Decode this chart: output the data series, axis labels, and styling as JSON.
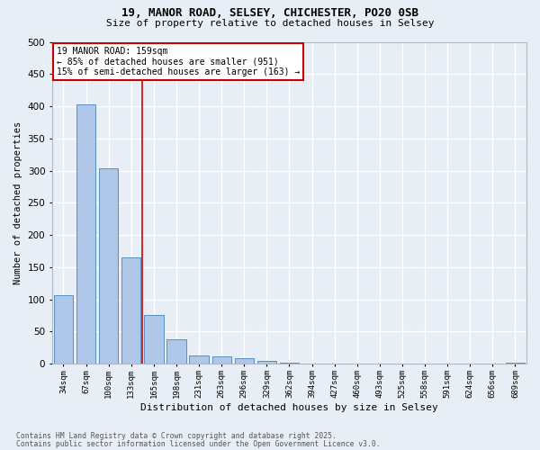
{
  "title1": "19, MANOR ROAD, SELSEY, CHICHESTER, PO20 0SB",
  "title2": "Size of property relative to detached houses in Selsey",
  "xlabel": "Distribution of detached houses by size in Selsey",
  "ylabel": "Number of detached properties",
  "bar_color": "#aec6e8",
  "bar_edge_color": "#5a8fc0",
  "categories": [
    "34sqm",
    "67sqm",
    "100sqm",
    "133sqm",
    "165sqm",
    "198sqm",
    "231sqm",
    "263sqm",
    "296sqm",
    "329sqm",
    "362sqm",
    "394sqm",
    "427sqm",
    "460sqm",
    "493sqm",
    "525sqm",
    "558sqm",
    "591sqm",
    "624sqm",
    "656sqm",
    "689sqm"
  ],
  "values": [
    107,
    403,
    303,
    165,
    76,
    38,
    13,
    11,
    9,
    5,
    2,
    0,
    0,
    0,
    0,
    0,
    0,
    0,
    0,
    0,
    2
  ],
  "vline_x": 3.5,
  "vline_color": "#cc0000",
  "annotation_text": "19 MANOR ROAD: 159sqm\n← 85% of detached houses are smaller (951)\n15% of semi-detached houses are larger (163) →",
  "footer1": "Contains HM Land Registry data © Crown copyright and database right 2025.",
  "footer2": "Contains public sector information licensed under the Open Government Licence v3.0.",
  "bg_color": "#e8eef5",
  "grid_color": "#ffffff",
  "ylim": [
    0,
    500
  ],
  "yticks": [
    0,
    50,
    100,
    150,
    200,
    250,
    300,
    350,
    400,
    450,
    500
  ]
}
